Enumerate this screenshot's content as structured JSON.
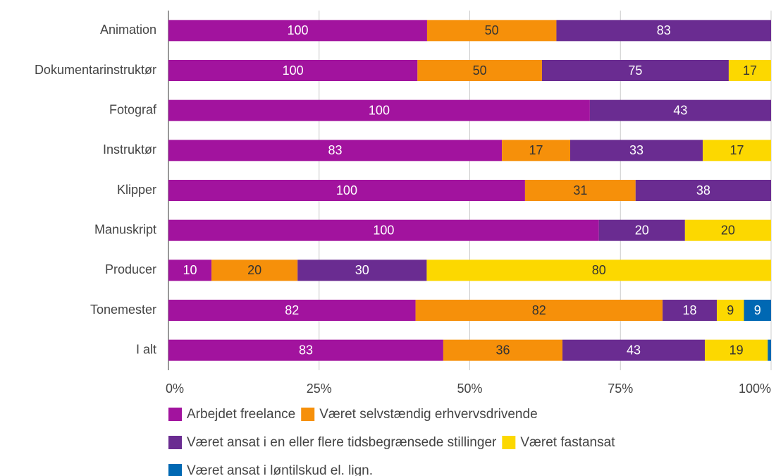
{
  "chart_data": {
    "type": "bar",
    "orientation": "horizontal",
    "stack": "percent",
    "categories": [
      "Animation",
      "Dokumentarinstruktør",
      "Fotograf",
      "Instruktør",
      "Klipper",
      "Manuskript",
      "Producer",
      "Tonemester",
      "I alt"
    ],
    "series": [
      {
        "name": "Arbejdet freelance",
        "color": "#a2139e",
        "values": [
          100,
          100,
          100,
          83,
          100,
          100,
          10,
          82,
          83
        ]
      },
      {
        "name": "Været selvstændig erhvervsdrivende",
        "color": "#f6900a",
        "values": [
          50,
          50,
          null,
          17,
          31,
          null,
          20,
          82,
          36
        ]
      },
      {
        "name": "Været ansat i en eller flere tidsbegrænsede stillinger",
        "color": "#6a2c91",
        "values": [
          83,
          75,
          43,
          33,
          38,
          20,
          30,
          18,
          43
        ]
      },
      {
        "name": "Været fastansat",
        "color": "#fcd800",
        "values": [
          null,
          17,
          null,
          17,
          null,
          20,
          80,
          9,
          19
        ]
      },
      {
        "name": "Været ansat i løntilskud el. lign.",
        "color": "#0068b3",
        "values": [
          null,
          null,
          null,
          null,
          null,
          null,
          null,
          9,
          1
        ]
      }
    ],
    "xlim": [
      0,
      100
    ],
    "xticks": [
      {
        "value": 0,
        "label": "0%"
      },
      {
        "value": 25,
        "label": "25%"
      },
      {
        "value": 50,
        "label": "50%"
      },
      {
        "value": 75,
        "label": "75%"
      },
      {
        "value": 100,
        "label": "100%"
      }
    ],
    "grid": true,
    "legend": "bottom"
  }
}
